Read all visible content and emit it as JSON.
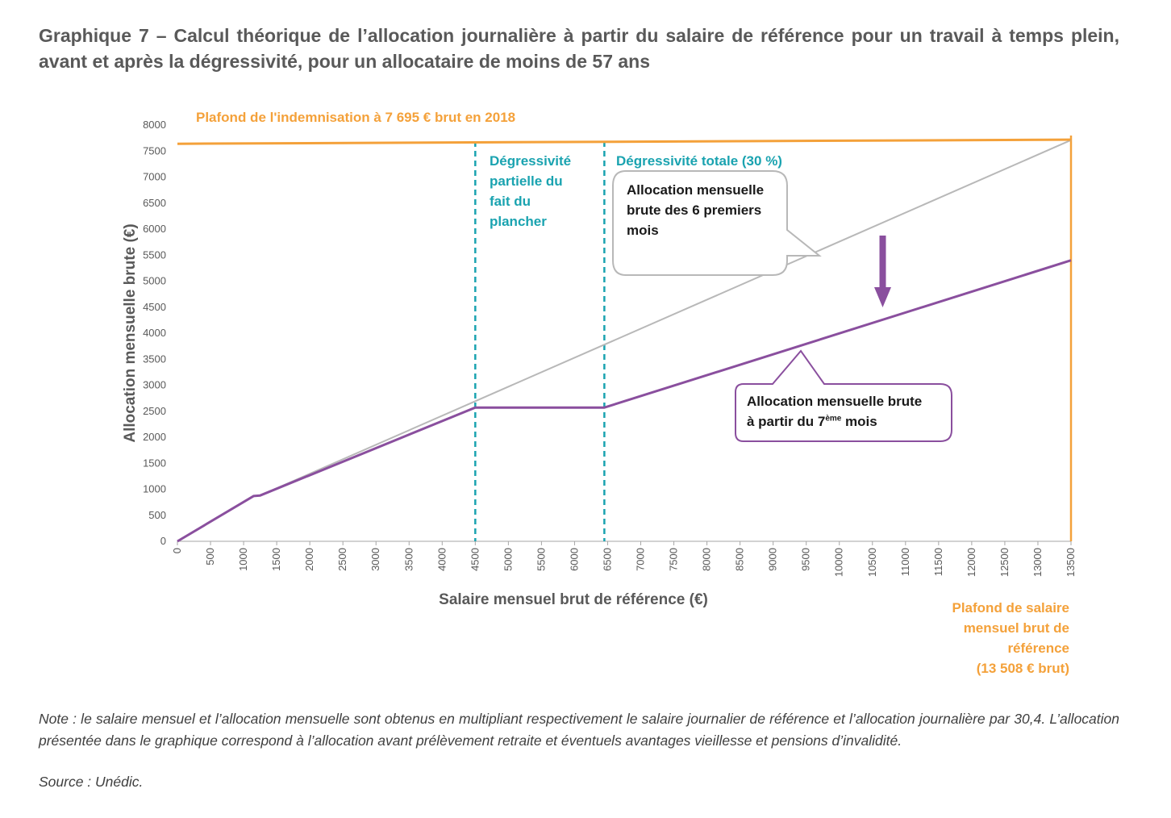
{
  "title": "Graphique 7 – Calcul théorique de l’allocation journalière à partir du salaire de référence pour un travail à temps plein, avant et après la dégressivité, pour un allocataire de moins de 57 ans",
  "note": "Note : le salaire mensuel et l’allocation mensuelle sont obtenus en multipliant respectivement le salaire journalier de référence et l’allocation journalière par 30,4. L’allocation présentée dans le graphique correspond à l’allocation avant prélèvement retraite et éventuels avantages vieillesse et pensions d’invalidité.",
  "source": "Source : Unédic.",
  "colors": {
    "orange": "#f4a13a",
    "teal": "#1aa3b0",
    "purple": "#8a4f9e",
    "gray": "#b8b8b8"
  },
  "chart_data": {
    "type": "line",
    "xlabel": "Salaire mensuel brut de référence (€)",
    "ylabel": "Allocation mensuelle brute (€)",
    "xlim": [
      0,
      13500
    ],
    "ylim": [
      0,
      8000
    ],
    "x_ticks": [
      "0",
      "500",
      "1000",
      "1500",
      "2000",
      "2500",
      "3000",
      "3500",
      "4000",
      "4500",
      "5000",
      "5500",
      "6000",
      "6500",
      "7000",
      "7500",
      "8000",
      "8500",
      "9000",
      "9500",
      "10000",
      "10500",
      "11000",
      "11500",
      "12000",
      "12500",
      "13000",
      "13500"
    ],
    "y_ticks": [
      "0",
      "500",
      "1000",
      "1500",
      "2000",
      "2500",
      "3000",
      "3500",
      "4000",
      "4500",
      "5000",
      "5500",
      "6000",
      "6500",
      "7000",
      "7500",
      "8000"
    ],
    "series": [
      {
        "name": "Allocation mensuelle brute des 6 premiers mois",
        "color": "#b8b8b8",
        "x": [
          0,
          1150,
          1250,
          13500
        ],
        "y": [
          0,
          870,
          880,
          7710
        ]
      },
      {
        "name": "Allocation mensuelle brute à partir du 7ème mois",
        "color": "#8a4f9e",
        "x": [
          0,
          1150,
          1250,
          4500,
          6450,
          13500
        ],
        "y": [
          0,
          870,
          880,
          2570,
          2570,
          5400
        ]
      },
      {
        "name": "Plafond de l'indemnisation à 7 695 € brut en 2018",
        "color": "#f4a13a",
        "x": [
          0,
          13500
        ],
        "y": [
          7640,
          7720
        ]
      }
    ],
    "vlines": [
      {
        "x": 4500,
        "color": "#1aa3b0",
        "style": "dashed"
      },
      {
        "x": 6450,
        "color": "#1aa3b0",
        "style": "dashed"
      },
      {
        "x": 13500,
        "color": "#f4a13a",
        "style": "solid"
      }
    ],
    "annotations": {
      "plafond_indemnisation": "Plafond de l'indemnisation à 7 695 € brut en 2018",
      "degressivite_partielle": [
        "Dégressivité",
        "partielle du",
        "fait du",
        "plancher"
      ],
      "degressivite_totale": "Dégressivité totale (30 %)",
      "callout_6_mois": [
        "Allocation mensuelle",
        "brute des 6 premiers",
        "mois"
      ],
      "callout_7_mois_line1": "Allocation mensuelle brute",
      "callout_7_mois_prefix": "à partir du 7",
      "callout_7_mois_sup": "ème",
      "callout_7_mois_suffix": " mois",
      "plafond_salaire": [
        "Plafond de salaire",
        "mensuel brut de",
        "référence",
        "(13 508 € brut)"
      ]
    },
    "grid": false,
    "legend": "none"
  }
}
